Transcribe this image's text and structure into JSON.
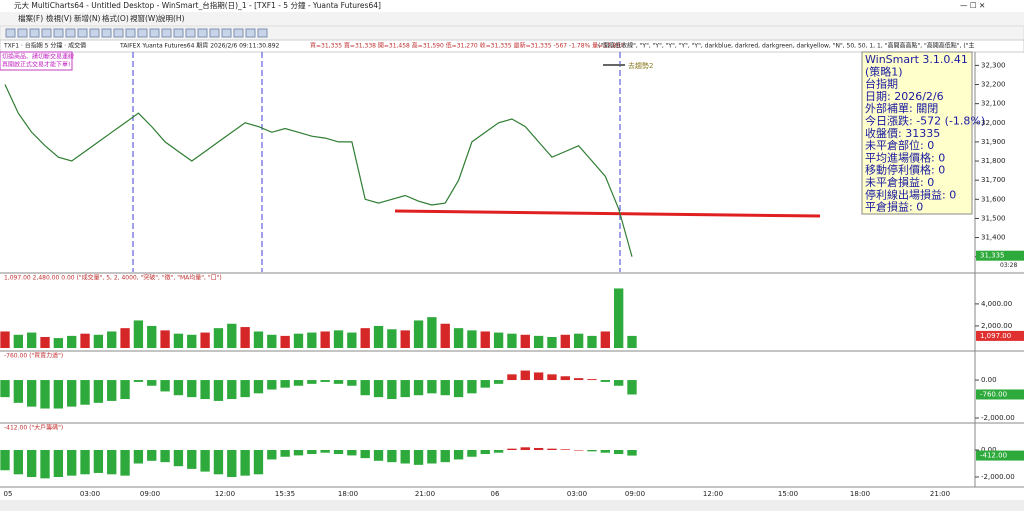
{
  "window_title": "元大 MultiCharts64 - Untitled Desktop - WinSmart_台指期(日)_1 - [TXF1 - 5 分鐘 - Yuanta Futures64]",
  "menu": [
    "檔案(F)",
    "檢視(V)",
    "新增(N)",
    "格式(O)",
    "視窗(W)",
    "說明(H)"
  ],
  "chart_header": [
    "TXF1 · 台指期 5 分鐘 · 成交價",
    "TAIFEX  Yuanta Futures64  期貨  2026/2/6  09:11:30.892",
    "買=31,335 賣=31,338 開=31,458 高=31,590 低=31,270 收=31,335 最新=31,335 -567 -1.78% 量=17,897",
    "(\"開高低收線\", \"Y\", \"Y\", \"Y\", \"Y\", \"Y\", darkblue, darkred, darkgreen, darkyellow, \"N\", 50, 50, 1, 1, \"高開高高點\", \"高開高低點\", (\"主"
  ],
  "notice": [
    "切換商品、請切斷交易連線",
    "再開啟正式交易才能下單!"
  ],
  "drawing_label": "去趨勢2",
  "info_box": [
    "WinSmart 3.1.0.41",
    "(策略1)",
    "台指期",
    "日期: 2026/2/6",
    "外部補單: 關閉",
    "今日漲跌: -572 (-1.8%)",
    "收盤價: 31335",
    "未平倉部位: 0",
    "平均進場價格: 0",
    "移動停利價格: 0",
    "未平倉損益: 0",
    "停利線出場損益: 0",
    "平倉損益: 0"
  ],
  "time_labels": [
    "05",
    "03:00",
    "09:00",
    "12:00",
    "15:35",
    "18:00",
    "21:00",
    "06",
    "03:00",
    "09:00",
    "12:00",
    "15:00",
    "18:00",
    "21:00"
  ],
  "up_color": "#d62728",
  "down_color": "#2eaa3c",
  "price": {
    "last_label": "31,335",
    "timer": "03:28",
    "color": "#2e7d32",
    "ylim": [
      31220,
      32370
    ],
    "yticks": [
      {
        "value": 31300,
        "label": "31,300"
      },
      {
        "value": 31400,
        "label": "31,400"
      },
      {
        "value": 31500,
        "label": "31,500"
      },
      {
        "value": 31600,
        "label": "31,600"
      },
      {
        "value": 31700,
        "label": "31,700"
      },
      {
        "value": 31800,
        "label": "31,800"
      },
      {
        "value": 31900,
        "label": "31,900"
      },
      {
        "value": 32000,
        "label": "32,000"
      },
      {
        "value": 32100,
        "label": "32,100"
      },
      {
        "value": 32200,
        "label": "32,200"
      },
      {
        "value": 32300,
        "label": "32,300"
      }
    ],
    "values": [
      32200,
      32050,
      31950,
      31880,
      31820,
      31800,
      31850,
      31900,
      31950,
      32000,
      32050,
      31980,
      31900,
      31850,
      31800,
      31850,
      31900,
      31950,
      32000,
      31980,
      31950,
      31970,
      31950,
      31930,
      31920,
      31900,
      31900,
      31600,
      31580,
      31600,
      31620,
      31590,
      31570,
      31580,
      31700,
      31900,
      31950,
      32000,
      32020,
      31980,
      31900,
      31820,
      31850,
      31880,
      31800,
      31720,
      31550,
      31300
    ]
  },
  "panes": [
    {
      "header": "1,097.00  2,480.00  0.00  (\"成交量\", 5, 2, 4000, \"突破\", \"徵\", \"MA均量\", \"口\")",
      "last_label": "1,097.00",
      "ylim": [
        -180,
        6800
      ],
      "yticks": [
        {
          "value": 2000,
          "label": "2,000.00"
        },
        {
          "value": 4000,
          "label": "4,000.00"
        }
      ],
      "values": [
        1500,
        1200,
        1400,
        1000,
        900,
        1100,
        1300,
        1200,
        1500,
        1800,
        2500,
        2000,
        1600,
        1300,
        1200,
        1400,
        1800,
        2200,
        1900,
        1500,
        1200,
        1100,
        1300,
        1400,
        1500,
        1600,
        1400,
        1800,
        2000,
        1700,
        1600,
        2500,
        2800,
        2200,
        1800,
        1600,
        1500,
        1400,
        1300,
        1200,
        1100,
        1000,
        1200,
        1300,
        1100,
        1500,
        5400,
        1097
      ]
    },
    {
      "header": "-760.00  (\"買賣力道\")",
      "last_label": "-760.00",
      "ylim": [
        -2210,
        1530
      ],
      "yticks": [
        {
          "value": 0,
          "label": "0.00"
        },
        {
          "value": -2000,
          "label": "-2,000.00"
        }
      ],
      "values": [
        -900,
        -1200,
        -1400,
        -1500,
        -1500,
        -1400,
        -1300,
        -1200,
        -1100,
        -1000,
        -100,
        -300,
        -600,
        -800,
        -900,
        -1000,
        -1100,
        -1000,
        -900,
        -700,
        -500,
        -400,
        -300,
        -200,
        -100,
        -200,
        -300,
        -800,
        -900,
        -1000,
        -900,
        -800,
        -700,
        -800,
        -900,
        -700,
        -400,
        -200,
        300,
        500,
        400,
        300,
        200,
        100,
        50,
        -100,
        -300,
        -760
      ]
    },
    {
      "header": "-412.00  (\"大戶籌碼\")",
      "last_label": "-412.00",
      "ylim": [
        -2740,
        2000
      ],
      "yticks": [
        {
          "value": 0,
          "label": "0.00"
        },
        {
          "value": -2000,
          "label": "-2,000.00"
        }
      ],
      "values": [
        -1500,
        -1800,
        -2000,
        -2100,
        -2000,
        -1900,
        -1800,
        -1700,
        -1800,
        -1900,
        -1000,
        -800,
        -900,
        -1200,
        -1400,
        -1600,
        -1800,
        -2000,
        -1900,
        -1800,
        -700,
        -500,
        -400,
        -300,
        -200,
        -300,
        -400,
        -600,
        -800,
        -900,
        -1000,
        -1100,
        -1000,
        -900,
        -700,
        -500,
        -300,
        -200,
        100,
        200,
        150,
        100,
        50,
        0,
        -100,
        -200,
        -300,
        -412
      ]
    }
  ]
}
